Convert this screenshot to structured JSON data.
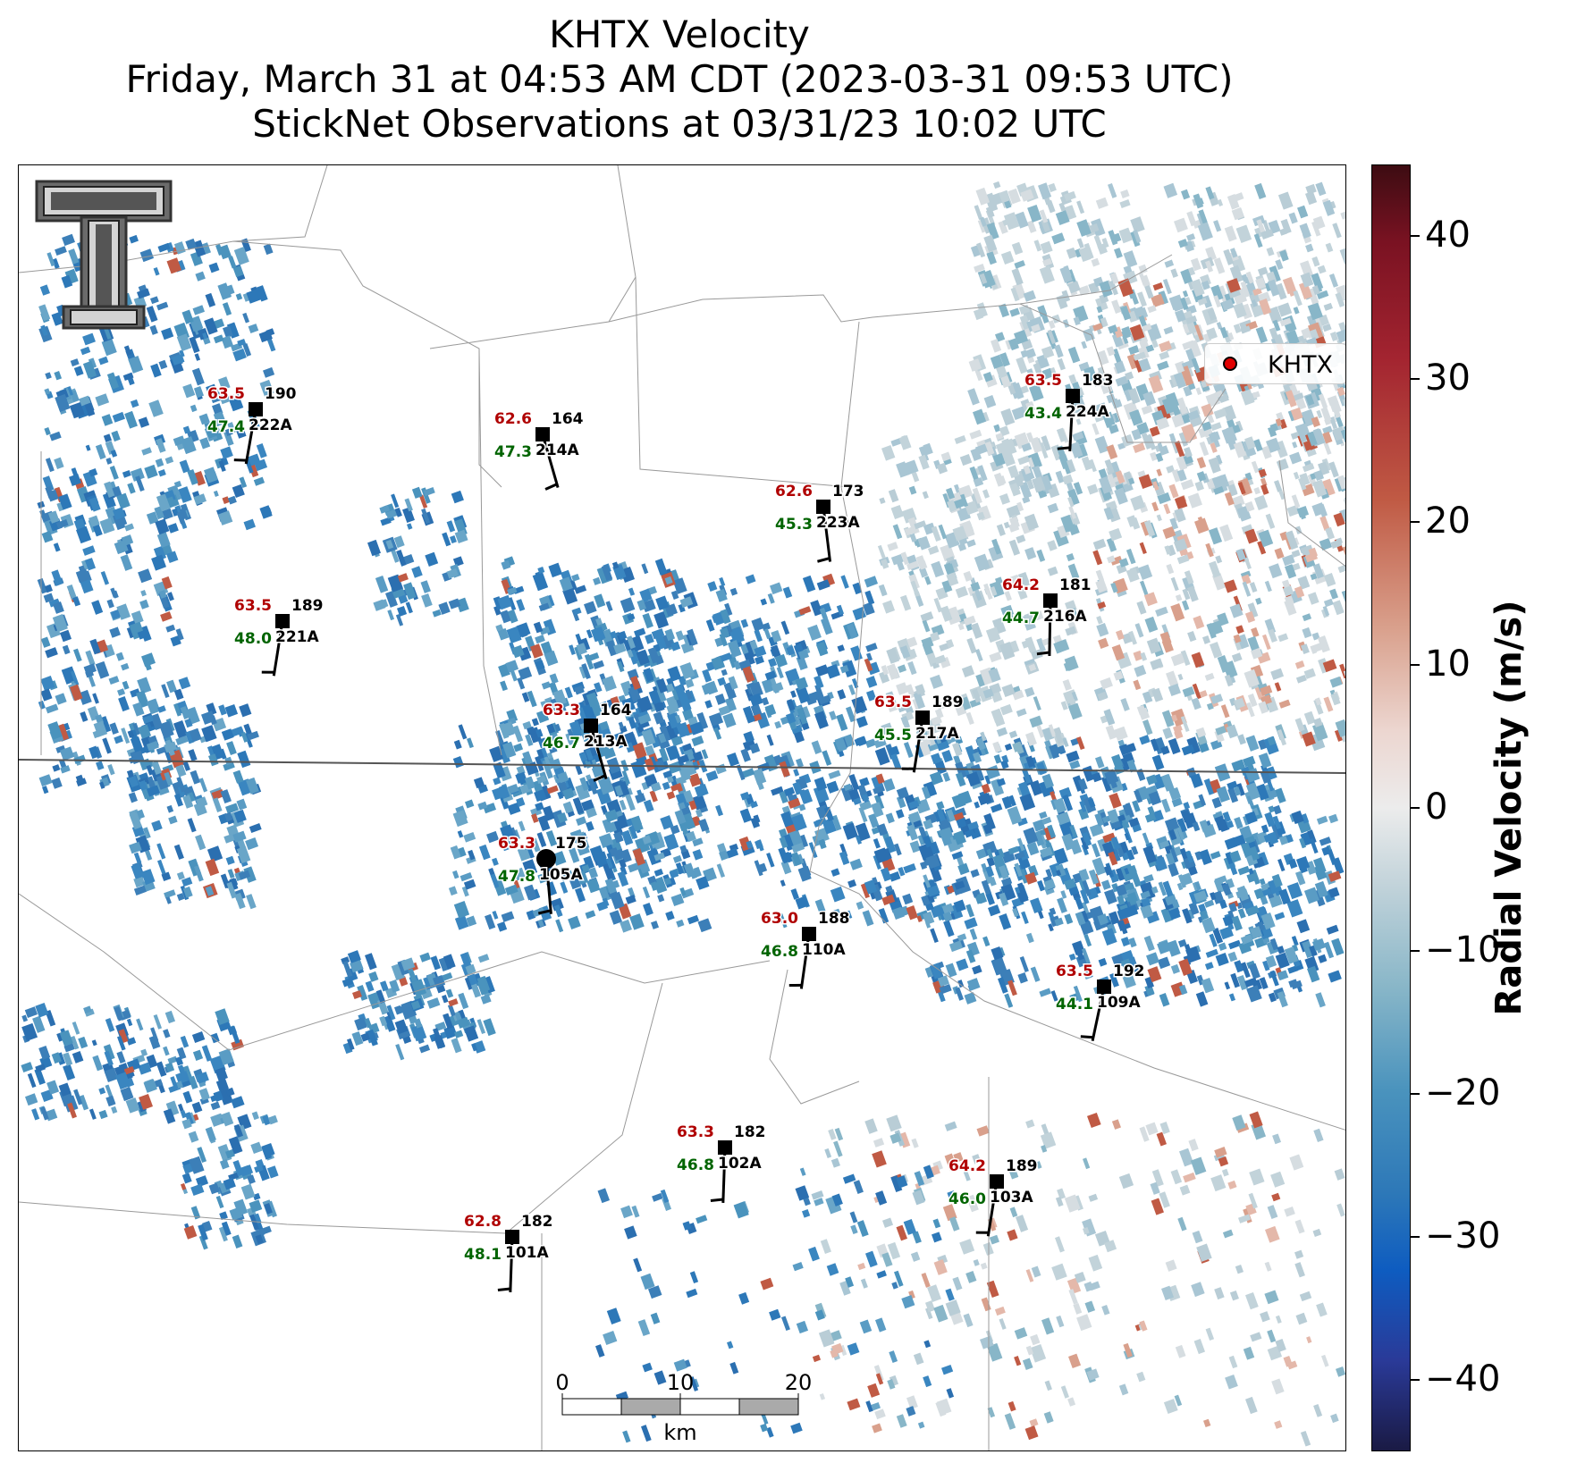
{
  "title": {
    "line1": "KHTX Velocity",
    "line2": "Friday, March 31 at 04:53 AM CDT (2023-03-31 09:53 UTC)",
    "line3": "StickNet Observations at 03/31/23 10:02 UTC"
  },
  "legend": {
    "label": "KHTX",
    "marker_color": "#e00000"
  },
  "logo": {
    "name": "texas-tech-double-t"
  },
  "colorbar": {
    "label": "Radial Velocity (m/s)",
    "ticks": [
      "40",
      "30",
      "20",
      "10",
      "0",
      "−10",
      "−20",
      "−30",
      "−40"
    ],
    "range": [
      -45,
      45
    ]
  },
  "scale_bar": {
    "labels": [
      "0",
      "10",
      "20"
    ],
    "unit": "km"
  },
  "stations": [
    {
      "id": "222A",
      "temp": "63.5",
      "dew": "47.4",
      "dir": "190"
    },
    {
      "id": "214A",
      "temp": "62.6",
      "dew": "47.3",
      "dir": "164"
    },
    {
      "id": "223A",
      "temp": "62.6",
      "dew": "45.3",
      "dir": "173"
    },
    {
      "id": "224A",
      "temp": "63.5",
      "dew": "43.4",
      "dir": "183"
    },
    {
      "id": "221A",
      "temp": "63.5",
      "dew": "48.0",
      "dir": "189"
    },
    {
      "id": "216A",
      "temp": "64.2",
      "dew": "44.7",
      "dir": "181"
    },
    {
      "id": "213A",
      "temp": "63.3",
      "dew": "46.7",
      "dir": "164"
    },
    {
      "id": "217A",
      "temp": "63.5",
      "dew": "45.5",
      "dir": "189"
    },
    {
      "id": "105A",
      "temp": "63.3",
      "dew": "47.8",
      "dir": "175"
    },
    {
      "id": "110A",
      "temp": "63.0",
      "dew": "46.8",
      "dir": "188"
    },
    {
      "id": "109A",
      "temp": "63.5",
      "dew": "44.1",
      "dir": "192"
    },
    {
      "id": "102A",
      "temp": "63.3",
      "dew": "46.8",
      "dir": "182"
    },
    {
      "id": "103A",
      "temp": "64.2",
      "dew": "46.0",
      "dir": "189"
    },
    {
      "id": "101A",
      "temp": "62.8",
      "dew": "48.1",
      "dir": "182"
    }
  ],
  "colors": {
    "temperature": "#b00000",
    "dewpoint": "#006400",
    "velocity_inbound": "#2d78b8",
    "velocity_outbound": "#c05a44"
  }
}
